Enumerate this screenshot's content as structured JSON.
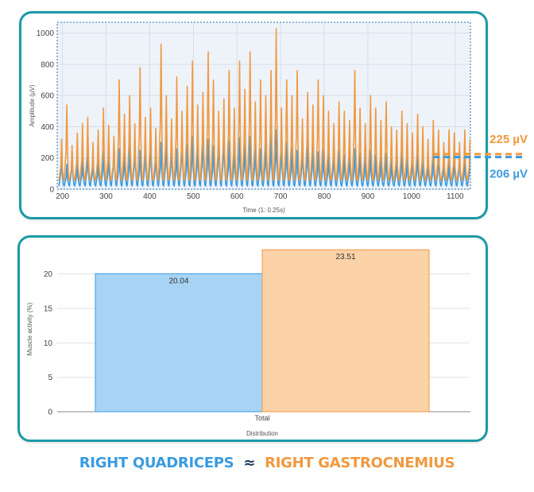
{
  "colors": {
    "quadriceps": "#3a9be0",
    "gastrocnemius": "#f0993e",
    "quad_fill": "#a7d4f5",
    "gastro_fill": "#fcd2a8",
    "frame": "#1c9aa6",
    "caption_symbol": "#1d3b5c"
  },
  "chart_data": [
    {
      "type": "line",
      "xlabel": "Time (1: 0.25s)",
      "ylabel": "Amplitude (µV)",
      "xlim": [
        188,
        1135
      ],
      "ylim": [
        0,
        1070
      ],
      "x_ticks": [
        200,
        300,
        400,
        500,
        600,
        700,
        800,
        900,
        1000,
        1100
      ],
      "y_ticks": [
        0,
        200,
        400,
        600,
        800,
        1000
      ],
      "grid": true,
      "series": [
        {
          "color": "#3a9be0",
          "baseline": 20,
          "period": 12,
          "peaks": [
            230,
            160,
            240,
            180,
            200,
            260,
            210,
            190,
            250,
            220,
            300,
            260,
            230,
            280,
            320,
            250,
            290,
            340,
            270,
            300,
            330,
            310,
            260,
            380,
            290,
            340,
            300,
            360,
            320,
            280,
            350,
            390,
            310,
            270,
            330,
            300,
            340,
            290,
            260,
            310,
            350,
            380,
            330,
            300,
            270,
            250,
            290,
            310,
            280,
            240,
            260,
            230,
            270,
            250,
            220,
            240,
            260,
            230,
            210,
            250,
            220,
            200,
            230,
            190,
            210,
            240,
            200,
            230,
            250,
            210,
            190,
            220,
            240,
            200,
            180,
            210,
            230,
            200,
            220,
            190
          ]
        },
        {
          "color": "#f0993e",
          "baseline": 55,
          "period": 12,
          "peaks": [
            320,
            540,
            280,
            360,
            420,
            460,
            300,
            380,
            520,
            410,
            340,
            700,
            480,
            600,
            420,
            780,
            460,
            520,
            390,
            930,
            600,
            450,
            720,
            500,
            660,
            820,
            540,
            620,
            880,
            700,
            500,
            580,
            760,
            520,
            820,
            640,
            880,
            560,
            700,
            600,
            760,
            1030,
            520,
            700,
            600,
            760,
            450,
            620,
            540,
            700,
            600,
            500,
            420,
            560,
            500,
            440,
            760,
            520,
            420,
            600,
            520,
            440,
            560,
            400,
            380,
            500,
            420,
            360,
            480,
            400,
            320,
            440,
            380,
            300,
            380,
            360,
            300,
            380,
            320,
            280
          ]
        }
      ],
      "annotations": [
        {
          "value": 225,
          "label": "225 µV",
          "color": "#f0993e"
        },
        {
          "value": 206,
          "label": "206 µV",
          "color": "#3a9be0"
        }
      ]
    },
    {
      "type": "bar",
      "categories": [
        "Total"
      ],
      "xlabel": "Distribution",
      "ylabel": "Muscle activity (%)",
      "ylim": [
        0,
        24
      ],
      "y_ticks": [
        0,
        5,
        10,
        15,
        20
      ],
      "grid": true,
      "series": [
        {
          "values": [
            20.04
          ],
          "color": "#3a9be0",
          "fill": "#a7d4f5"
        },
        {
          "values": [
            23.51
          ],
          "color": "#f0993e",
          "fill": "#fcd2a8"
        }
      ],
      "data_labels": [
        "20.04",
        "23.51"
      ]
    }
  ],
  "caption": {
    "left": "RIGHT QUADRICEPS",
    "symbol": "≈",
    "right": "RIGHT GASTROCNEMIUS"
  }
}
